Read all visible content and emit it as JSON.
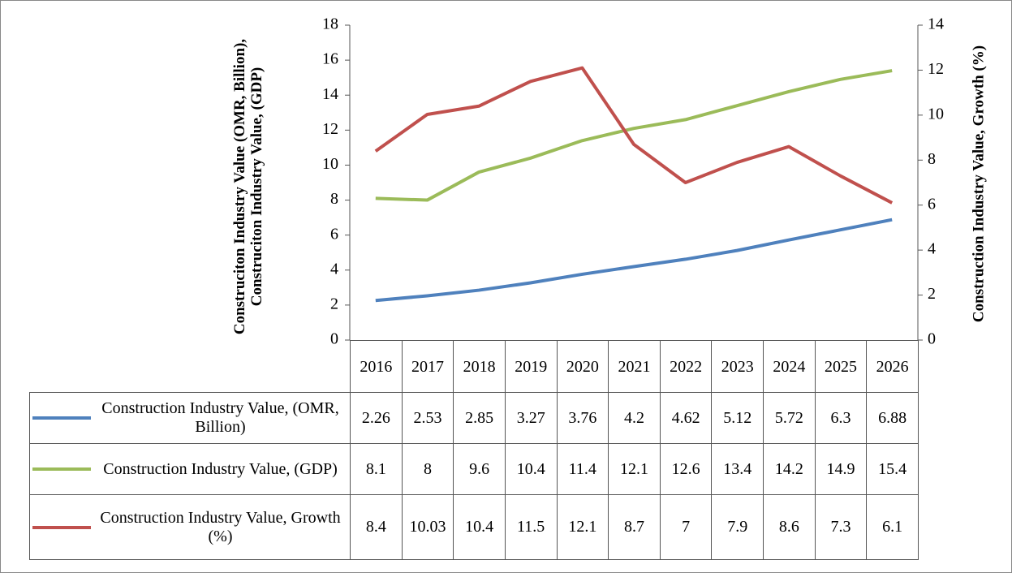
{
  "chart_data": {
    "type": "line",
    "y_label": "Construciton Industry Value (OMR, Billion), Construciton Industry Value, (GDP)",
    "y2_label": "Construction Industry Value, Growth (%)",
    "categories": [
      "2016",
      "2017",
      "2018",
      "2019",
      "2020",
      "2021",
      "2022",
      "2023",
      "2024",
      "2025",
      "2026"
    ],
    "series": [
      {
        "name": "Construction Industry Value, (OMR, Billion)",
        "color": "#4f81bd",
        "values": [
          2.26,
          2.53,
          2.85,
          3.27,
          3.76,
          4.2,
          4.62,
          5.12,
          5.72,
          6.3,
          6.88
        ]
      },
      {
        "name": "Construction Industry Value, (GDP)",
        "color": "#9bbb59",
        "values": [
          8.1,
          8,
          9.6,
          10.4,
          11.4,
          12.1,
          12.6,
          13.4,
          14.2,
          14.9,
          15.4
        ]
      },
      {
        "name": "Construction Industry Value, Growth (%)",
        "color": "#c0504d",
        "axis": "y2",
        "values": [
          8.4,
          10.03,
          10.4,
          11.5,
          12.1,
          8.7,
          7,
          7.9,
          8.6,
          7.3,
          6.1
        ]
      }
    ],
    "ylim": [
      0,
      18
    ],
    "yticks": [
      0,
      2,
      4,
      6,
      8,
      10,
      12,
      14,
      16,
      18
    ],
    "y2lim": [
      0,
      14
    ],
    "y2ticks": [
      0,
      2,
      4,
      6,
      8,
      10,
      12,
      14
    ],
    "grid": false
  }
}
